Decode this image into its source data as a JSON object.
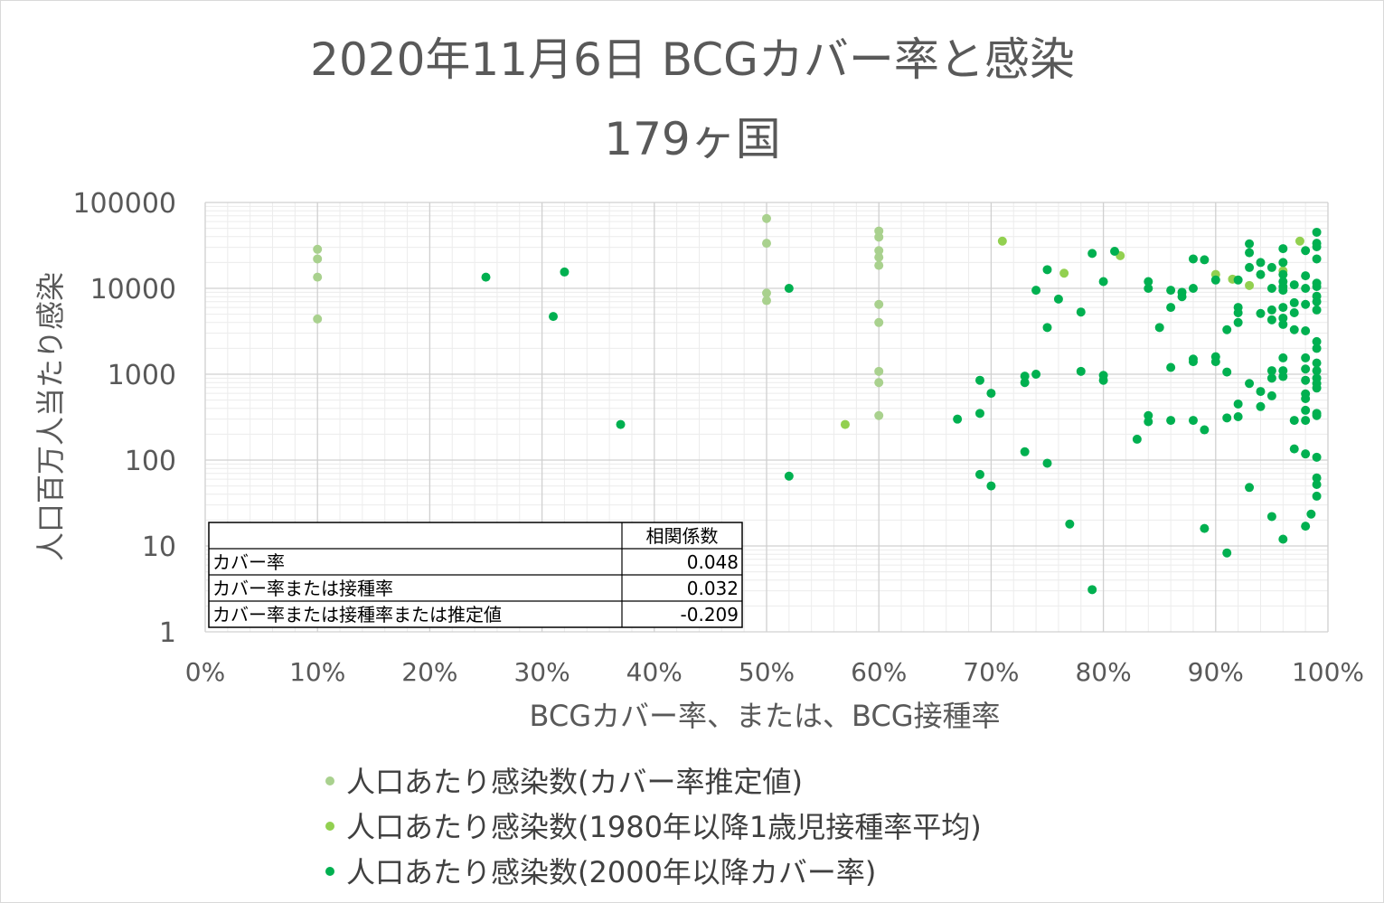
{
  "chart_data": {
    "type": "scatter",
    "title": "2020年11月6日 BCGカバー率と感染",
    "subtitle": "179ヶ国",
    "xlabel": "BCGカバー率、または、BCG接種率",
    "ylabel": "人口百万人当たり感染",
    "xlim": [
      0,
      1
    ],
    "ylim": [
      1,
      100000
    ],
    "yscale": "log",
    "grid": true,
    "legend_position": "bottom",
    "x_tick_labels": [
      "0%",
      "10%",
      "20%",
      "30%",
      "40%",
      "50%",
      "60%",
      "70%",
      "80%",
      "90%",
      "100%"
    ],
    "y_tick_labels": [
      "1",
      "10",
      "100",
      "1000",
      "10000",
      "100000"
    ],
    "series": [
      {
        "name": "人口あたり感染数(カバー率推定値)",
        "color": "#a9d18e",
        "points": [
          [
            0.1,
            28500
          ],
          [
            0.1,
            22000
          ],
          [
            0.1,
            13500
          ],
          [
            0.1,
            4400
          ],
          [
            0.5,
            65000
          ],
          [
            0.5,
            33500
          ],
          [
            0.5,
            8800
          ],
          [
            0.5,
            7200
          ],
          [
            0.6,
            46500
          ],
          [
            0.6,
            39500
          ],
          [
            0.6,
            27500
          ],
          [
            0.6,
            23000
          ],
          [
            0.6,
            18500
          ],
          [
            0.6,
            6500
          ],
          [
            0.6,
            4000
          ],
          [
            0.6,
            1080
          ],
          [
            0.6,
            800
          ],
          [
            0.6,
            330
          ]
        ]
      },
      {
        "name": "人口あたり感染数(1980年以降1歳児接種率平均)",
        "color": "#92d050",
        "points": [
          [
            0.57,
            260
          ],
          [
            0.71,
            35500
          ],
          [
            0.765,
            15000
          ],
          [
            0.815,
            24000
          ],
          [
            0.9,
            14500
          ],
          [
            0.915,
            12800
          ],
          [
            0.93,
            10800
          ],
          [
            0.96,
            16000
          ],
          [
            0.975,
            35500
          ]
        ]
      },
      {
        "name": "人口あたり感染数(2000年以降カバー率)",
        "color": "#00b050",
        "points": [
          [
            0.25,
            13500
          ],
          [
            0.31,
            4700
          ],
          [
            0.32,
            15500
          ],
          [
            0.37,
            260
          ],
          [
            0.52,
            10000
          ],
          [
            0.52,
            65
          ],
          [
            0.67,
            300
          ],
          [
            0.69,
            850
          ],
          [
            0.69,
            350
          ],
          [
            0.69,
            68
          ],
          [
            0.7,
            600
          ],
          [
            0.7,
            50
          ],
          [
            0.73,
            950
          ],
          [
            0.73,
            800
          ],
          [
            0.73,
            125
          ],
          [
            0.74,
            1000
          ],
          [
            0.74,
            9500
          ],
          [
            0.75,
            16500
          ],
          [
            0.75,
            3500
          ],
          [
            0.75,
            92
          ],
          [
            0.76,
            7500
          ],
          [
            0.77,
            18
          ],
          [
            0.78,
            5300
          ],
          [
            0.78,
            1080
          ],
          [
            0.79,
            25500
          ],
          [
            0.79,
            3.1
          ],
          [
            0.8,
            12000
          ],
          [
            0.8,
            970
          ],
          [
            0.8,
            850
          ],
          [
            0.81,
            27000
          ],
          [
            0.83,
            175
          ],
          [
            0.84,
            12000
          ],
          [
            0.84,
            10000
          ],
          [
            0.84,
            330
          ],
          [
            0.84,
            280
          ],
          [
            0.85,
            3500
          ],
          [
            0.86,
            9500
          ],
          [
            0.86,
            6000
          ],
          [
            0.86,
            1200
          ],
          [
            0.86,
            290
          ],
          [
            0.87,
            9000
          ],
          [
            0.87,
            8000
          ],
          [
            0.88,
            22000
          ],
          [
            0.88,
            10000
          ],
          [
            0.88,
            1500
          ],
          [
            0.88,
            1400
          ],
          [
            0.88,
            290
          ],
          [
            0.89,
            21500
          ],
          [
            0.89,
            225
          ],
          [
            0.89,
            16
          ],
          [
            0.9,
            12500
          ],
          [
            0.9,
            1600
          ],
          [
            0.9,
            1400
          ],
          [
            0.91,
            3300
          ],
          [
            0.91,
            1060
          ],
          [
            0.91,
            310
          ],
          [
            0.91,
            8.3
          ],
          [
            0.92,
            12500
          ],
          [
            0.92,
            6000
          ],
          [
            0.92,
            5200
          ],
          [
            0.92,
            4000
          ],
          [
            0.92,
            450
          ],
          [
            0.92,
            320
          ],
          [
            0.93,
            33000
          ],
          [
            0.93,
            26000
          ],
          [
            0.93,
            17500
          ],
          [
            0.93,
            780
          ],
          [
            0.93,
            48
          ],
          [
            0.94,
            20000
          ],
          [
            0.94,
            14500
          ],
          [
            0.94,
            5100
          ],
          [
            0.94,
            630
          ],
          [
            0.94,
            420
          ],
          [
            0.95,
            17500
          ],
          [
            0.95,
            10000
          ],
          [
            0.95,
            5600
          ],
          [
            0.95,
            4300
          ],
          [
            0.95,
            1100
          ],
          [
            0.95,
            900
          ],
          [
            0.95,
            560
          ],
          [
            0.95,
            22
          ],
          [
            0.96,
            29000
          ],
          [
            0.96,
            20000
          ],
          [
            0.96,
            14500
          ],
          [
            0.96,
            12000
          ],
          [
            0.96,
            10500
          ],
          [
            0.96,
            9500
          ],
          [
            0.96,
            6000
          ],
          [
            0.96,
            4500
          ],
          [
            0.96,
            3800
          ],
          [
            0.96,
            1550
          ],
          [
            0.96,
            1100
          ],
          [
            0.96,
            940
          ],
          [
            0.96,
            12
          ],
          [
            0.97,
            11000
          ],
          [
            0.97,
            6800
          ],
          [
            0.97,
            5200
          ],
          [
            0.97,
            3300
          ],
          [
            0.97,
            290
          ],
          [
            0.97,
            135
          ],
          [
            0.98,
            27500
          ],
          [
            0.98,
            14000
          ],
          [
            0.98,
            10000
          ],
          [
            0.98,
            6500
          ],
          [
            0.98,
            3200
          ],
          [
            0.98,
            1550
          ],
          [
            0.98,
            1150
          ],
          [
            0.98,
            850
          ],
          [
            0.98,
            590
          ],
          [
            0.98,
            520
          ],
          [
            0.98,
            380
          ],
          [
            0.98,
            290
          ],
          [
            0.98,
            118
          ],
          [
            0.98,
            17
          ],
          [
            0.985,
            23.5
          ],
          [
            0.99,
            45000
          ],
          [
            0.99,
            33500
          ],
          [
            0.99,
            30500
          ],
          [
            0.99,
            22000
          ],
          [
            0.99,
            11500
          ],
          [
            0.99,
            10500
          ],
          [
            0.99,
            8100
          ],
          [
            0.99,
            7000
          ],
          [
            0.99,
            5600
          ],
          [
            0.99,
            2400
          ],
          [
            0.99,
            2000
          ],
          [
            0.99,
            1350
          ],
          [
            0.99,
            1100
          ],
          [
            0.99,
            900
          ],
          [
            0.99,
            780
          ],
          [
            0.99,
            690
          ],
          [
            0.99,
            350
          ],
          [
            0.99,
            330
          ],
          [
            0.99,
            108
          ],
          [
            0.99,
            62
          ],
          [
            0.99,
            52
          ],
          [
            0.99,
            38
          ]
        ]
      }
    ],
    "table": {
      "header": [
        "",
        "相関係数"
      ],
      "rows": [
        [
          "カバー率",
          "0.048"
        ],
        [
          "カバー率または接種率",
          "0.032"
        ],
        [
          "カバー率または接種率または推定値",
          "-0.209"
        ]
      ]
    }
  }
}
